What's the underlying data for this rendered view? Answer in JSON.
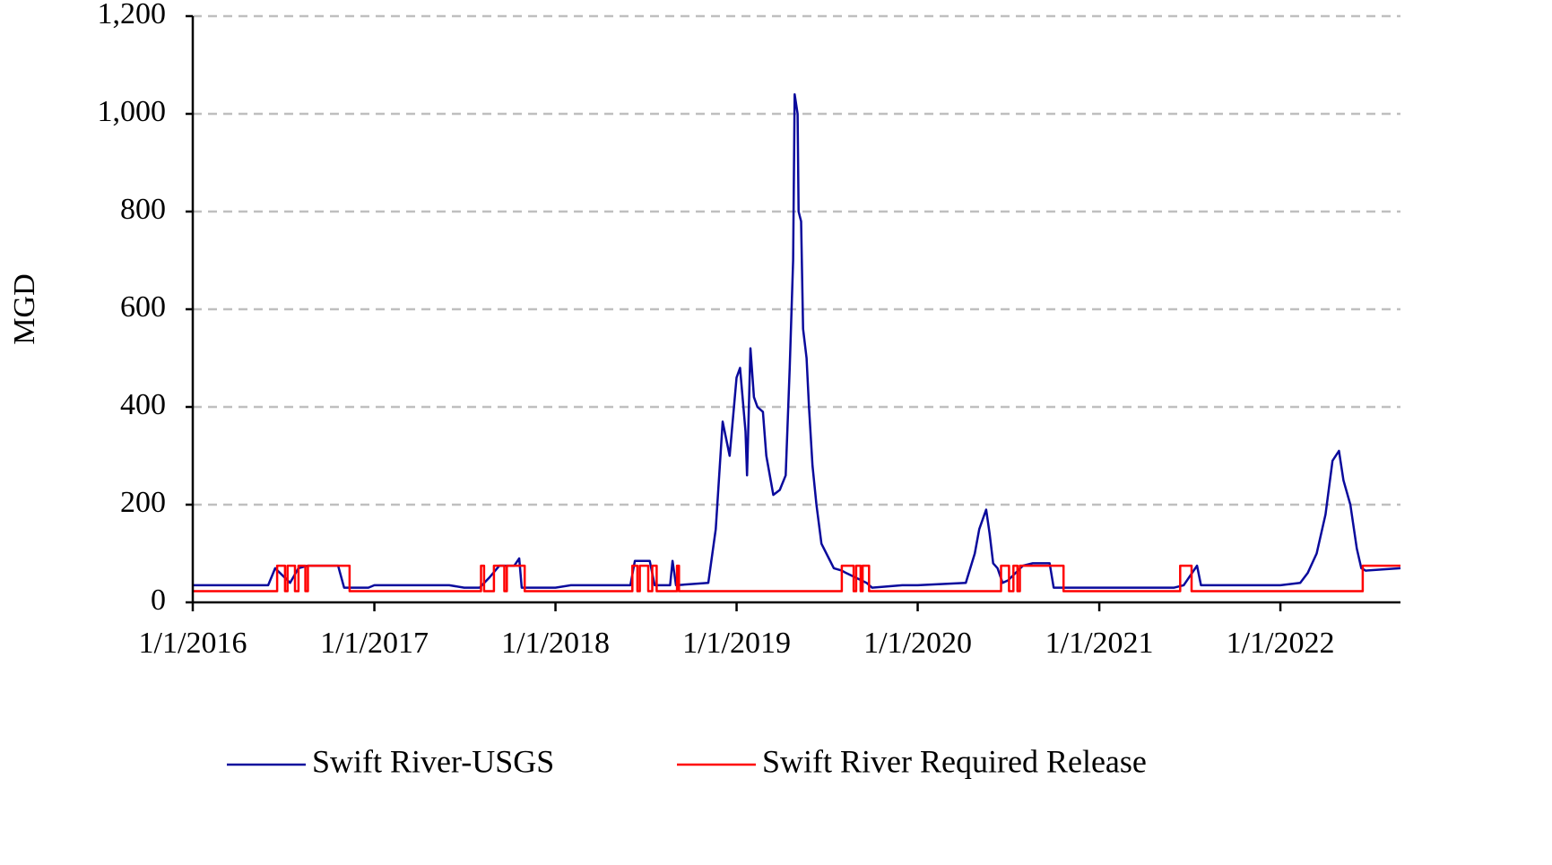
{
  "chart_data": {
    "type": "line",
    "y_label": "MGD",
    "xlim": [
      "1/1/2016",
      "8/31/2022"
    ],
    "xticks": [
      "1/1/2016",
      "1/1/2017",
      "1/1/2018",
      "1/1/2019",
      "1/1/2020",
      "1/1/2021",
      "1/1/2022"
    ],
    "ylim": [
      0,
      1200
    ],
    "yticks": [
      0,
      200,
      400,
      600,
      800,
      {
        "value": 1000,
        "label": "1,000"
      },
      {
        "value": 1200,
        "label": "1,200"
      }
    ],
    "grid": true,
    "legend": "bottom",
    "series": [
      {
        "name": "Swift River-USGS",
        "color": "#0a0a9c",
        "x": [
          "1/1/2016",
          "6/1/2016",
          "6/15/2016",
          "7/15/2016",
          "8/1/2016",
          "8/20/2016",
          "10/20/2016",
          "11/1/2016",
          "12/20/2016",
          "1/1/2017",
          "6/1/2017",
          "7/1/2017",
          "8/1/2017",
          "8/20/2017",
          "9/10/2017",
          "10/10/2017",
          "10/20/2017",
          "10/25/2017",
          "1/1/2018",
          "2/1/2018",
          "6/1/2018",
          "6/10/2018",
          "7/10/2018",
          "7/20/2018",
          "8/20/2018",
          "8/25/2018",
          "9/1/2018",
          "11/5/2018",
          "11/20/2018",
          "12/4/2018",
          "12/18/2018",
          "1/1/2019",
          "1/8/2019",
          "1/19/2019",
          "1/22/2019",
          "1/29/2019",
          "2/5/2019",
          "2/12/2019",
          "2/23/2019",
          "3/2/2019",
          "3/16/2019",
          "3/29/2019",
          "4/10/2019",
          "4/18/2019",
          "4/25/2019",
          "4/28/2019",
          "5/4/2019",
          "5/6/2019",
          "5/11/2019",
          "5/15/2019",
          "5/22/2019",
          "5/27/2019",
          "6/3/2019",
          "6/11/2019",
          "6/21/2019",
          "7/6/2019",
          "7/16/2019",
          "8/1/2019",
          "8/10/2019",
          "9/20/2019",
          "10/1/2019",
          "12/1/2019",
          "1/1/2020",
          "4/7/2020",
          "4/25/2020",
          "5/4/2020",
          "5/18/2020",
          "5/25/2020",
          "6/1/2020",
          "6/10/2020",
          "6/20/2020",
          "7/1/2020",
          "7/31/2020",
          "8/20/2020",
          "9/23/2020",
          "10/1/2020",
          "12/1/2020",
          "1/1/2021",
          "6/1/2021",
          "6/20/2021",
          "7/17/2021",
          "7/25/2021",
          "1/1/2022",
          "2/10/2022",
          "2/25/2022",
          "3/15/2022",
          "4/2/2022",
          "4/16/2022",
          "4/29/2022",
          "5/8/2022",
          "5/22/2022",
          "6/4/2022",
          "6/13/2022",
          "6/22/2022",
          "8/31/2022"
        ],
        "values": [
          35,
          35,
          70,
          40,
          70,
          75,
          75,
          30,
          30,
          35,
          35,
          30,
          30,
          50,
          75,
          75,
          90,
          30,
          30,
          35,
          35,
          85,
          85,
          35,
          35,
          85,
          35,
          40,
          150,
          370,
          300,
          460,
          480,
          350,
          260,
          520,
          420,
          400,
          390,
          300,
          220,
          230,
          260,
          480,
          700,
          1040,
          1000,
          800,
          780,
          560,
          500,
          400,
          280,
          200,
          120,
          90,
          70,
          65,
          60,
          40,
          30,
          35,
          35,
          40,
          100,
          150,
          190,
          140,
          80,
          70,
          40,
          45,
          75,
          80,
          80,
          30,
          30,
          30,
          30,
          35,
          75,
          35,
          35,
          40,
          60,
          100,
          180,
          290,
          310,
          250,
          200,
          110,
          70,
          65,
          70
        ]
      },
      {
        "name": "Swift River Required Release",
        "color": "#ff0000",
        "x": [
          "1/1/2016",
          "6/19/2016",
          "6/19/2016",
          "7/5/2016",
          "7/5/2016",
          "7/10/2016",
          "7/10/2016",
          "7/25/2016",
          "7/25/2016",
          "8/1/2016",
          "8/1/2016",
          "8/15/2016",
          "8/15/2016",
          "8/20/2016",
          "8/20/2016",
          "11/12/2016",
          "11/12/2016",
          "8/4/2017",
          "8/4/2017",
          "8/10/2017",
          "8/10/2017",
          "8/30/2017",
          "8/30/2017",
          "9/20/2017",
          "9/20/2017",
          "9/25/2017",
          "9/25/2017",
          "10/31/2017",
          "10/31/2017",
          "6/5/2018",
          "6/5/2018",
          "6/15/2018",
          "6/15/2018",
          "6/20/2018",
          "6/20/2018",
          "7/7/2018",
          "7/7/2018",
          "7/15/2018",
          "7/15/2018",
          "7/24/2018",
          "7/24/2018",
          "9/3/2018",
          "9/3/2018",
          "9/7/2018",
          "9/7/2018",
          "8/1/2019",
          "8/1/2019",
          "8/25/2019",
          "8/25/2019",
          "8/30/2019",
          "8/30/2019",
          "9/8/2019",
          "9/8/2019",
          "9/12/2019",
          "9/12/2019",
          "9/25/2019",
          "9/25/2019",
          "6/17/2020",
          "6/17/2020",
          "7/3/2020",
          "7/3/2020",
          "7/12/2020",
          "7/12/2020",
          "7/20/2020",
          "7/20/2020",
          "7/25/2020",
          "7/25/2020",
          "10/21/2020",
          "10/21/2020",
          "6/13/2021",
          "6/13/2021",
          "7/6/2021",
          "7/6/2021",
          "6/16/2022",
          "6/16/2022",
          "8/31/2022"
        ],
        "values": [
          23,
          23,
          75,
          75,
          23,
          23,
          75,
          75,
          23,
          23,
          75,
          75,
          23,
          23,
          75,
          75,
          23,
          23,
          75,
          75,
          23,
          23,
          75,
          75,
          23,
          23,
          75,
          75,
          23,
          23,
          75,
          75,
          23,
          23,
          75,
          75,
          23,
          23,
          75,
          75,
          23,
          23,
          75,
          75,
          23,
          23,
          75,
          75,
          23,
          23,
          75,
          75,
          23,
          23,
          75,
          75,
          23,
          23,
          75,
          75,
          23,
          23,
          75,
          75,
          23,
          23,
          75,
          75,
          23,
          23,
          75,
          75,
          23,
          23,
          75,
          75
        ]
      }
    ]
  }
}
